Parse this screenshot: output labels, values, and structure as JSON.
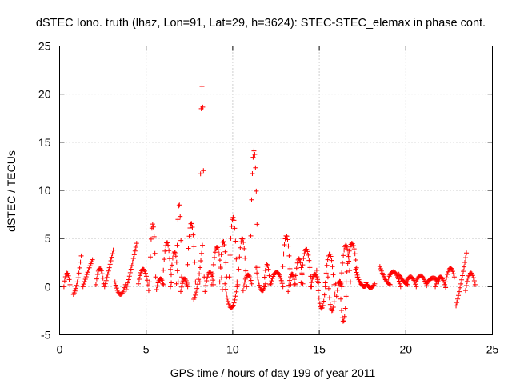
{
  "chart_data": {
    "type": "scatter",
    "title": "dSTEC Iono. truth (lhaz, Lon=91, Lat=29, h=3624): STEC-STEC_elemax in phase cont.",
    "xlabel": "GPS time / hours of day 199 of year 2011",
    "ylabel": "dSTEC  / TECUs",
    "xlim": [
      0,
      25
    ],
    "ylim": [
      -5,
      25
    ],
    "xticks": [
      0,
      5,
      10,
      15,
      20,
      25
    ],
    "yticks": [
      -5,
      0,
      5,
      10,
      15,
      20,
      25
    ],
    "grid": true,
    "marker": "plus",
    "color": "#ff0000",
    "arcs": [
      {
        "x0": 0.25,
        "x1": 0.6,
        "y0": 0.0,
        "yp": 1.4,
        "y1": 0.2
      },
      {
        "x0": 0.8,
        "x1": 1.25,
        "y0": -0.8,
        "yp": 0.5,
        "y1": 3.2
      },
      {
        "x0": 1.35,
        "x1": 1.9,
        "y0": 0.0,
        "yp": 1.5,
        "y1": 2.8
      },
      {
        "x0": 2.1,
        "x1": 2.55,
        "y0": 0.2,
        "yp": 1.9,
        "y1": 0.3
      },
      {
        "x0": 2.6,
        "x1": 3.1,
        "y0": 0.0,
        "yp": 1.8,
        "y1": 3.8
      },
      {
        "x0": 3.2,
        "x1": 3.8,
        "y0": 0.5,
        "yp": -0.8,
        "y1": 0.2
      },
      {
        "x0": 3.85,
        "x1": 4.45,
        "y0": -0.3,
        "yp": 2.0,
        "y1": 4.5
      },
      {
        "x0": 4.55,
        "x1": 5.15,
        "y0": 0.3,
        "yp": 1.8,
        "y1": -0.4
      },
      {
        "x0": 5.2,
        "x1": 5.55,
        "y0": 0.5,
        "yp": 6.5,
        "y1": 1.0
      },
      {
        "x0": 5.6,
        "x1": 6.0,
        "y0": -0.3,
        "yp": 0.8,
        "y1": 0.2
      },
      {
        "x0": 5.95,
        "x1": 6.45,
        "y0": 0.3,
        "yp": 4.6,
        "y1": 0.4
      },
      {
        "x0": 6.4,
        "x1": 6.85,
        "y0": 0.0,
        "yp": 3.6,
        "y1": 0.5
      },
      {
        "x0": 6.75,
        "x1": 7.05,
        "y0": 0.3,
        "yp": 8.6,
        "y1": 1.0
      },
      {
        "x0": 7.0,
        "x1": 7.4,
        "y0": -0.5,
        "yp": 0.8,
        "y1": 0.0
      },
      {
        "x0": 7.35,
        "x1": 7.85,
        "y0": 0.2,
        "yp": 6.6,
        "y1": 0.5
      },
      {
        "x0": 7.75,
        "x1": 8.25,
        "y0": -1.3,
        "yp": 0.5,
        "y1": 4.3
      },
      {
        "x0": 8.1,
        "x1": 8.35,
        "y0": 0.5,
        "yp": 20.8,
        "y1": 1.0
      },
      {
        "x0": 8.4,
        "x1": 8.9,
        "y0": -0.5,
        "yp": 1.5,
        "y1": 0.2
      },
      {
        "x0": 8.8,
        "x1": 9.4,
        "y0": 0.2,
        "yp": 4.1,
        "y1": -0.3
      },
      {
        "x0": 9.25,
        "x1": 9.65,
        "y0": 0.5,
        "yp": 4.7,
        "y1": 1.0
      },
      {
        "x0": 9.55,
        "x1": 10.25,
        "y0": 0.3,
        "yp": -2.2,
        "y1": 0.0
      },
      {
        "x0": 9.8,
        "x1": 10.25,
        "y0": 1.0,
        "yp": 7.2,
        "y1": 0.5
      },
      {
        "x0": 10.3,
        "x1": 10.8,
        "y0": 0.2,
        "yp": 5.0,
        "y1": 0.0
      },
      {
        "x0": 10.6,
        "x1": 11.1,
        "y0": -0.4,
        "yp": 1.2,
        "y1": 0.3
      },
      {
        "x0": 11.0,
        "x1": 11.45,
        "y0": 0.5,
        "yp": 14.1,
        "y1": 2.0
      },
      {
        "x0": 11.35,
        "x1": 11.9,
        "y0": 2.0,
        "yp": -0.3,
        "y1": 0.3
      },
      {
        "x0": 11.8,
        "x1": 12.15,
        "y0": 0.0,
        "yp": 2.3,
        "y1": 0.2
      },
      {
        "x0": 12.2,
        "x1": 12.9,
        "y0": 0.3,
        "yp": 1.5,
        "y1": 0.0
      },
      {
        "x0": 12.85,
        "x1": 13.35,
        "y0": 0.5,
        "yp": 5.3,
        "y1": 0.2
      },
      {
        "x0": 13.2,
        "x1": 13.6,
        "y0": -0.5,
        "yp": 1.3,
        "y1": 0.3
      },
      {
        "x0": 13.6,
        "x1": 14.05,
        "y0": 0.2,
        "yp": 2.9,
        "y1": 0.3
      },
      {
        "x0": 13.95,
        "x1": 14.55,
        "y0": 0.4,
        "yp": 3.9,
        "y1": 0.0
      },
      {
        "x0": 14.5,
        "x1": 14.95,
        "y0": 0.0,
        "yp": 1.3,
        "y1": 0.4
      },
      {
        "x0": 14.85,
        "x1": 15.35,
        "y0": 1.7,
        "yp": -2.2,
        "y1": 0.0
      },
      {
        "x0": 15.35,
        "x1": 15.85,
        "y0": 0.4,
        "yp": 3.4,
        "y1": 0.2
      },
      {
        "x0": 15.5,
        "x1": 15.95,
        "y0": 1.0,
        "yp": -2.5,
        "y1": 0.3
      },
      {
        "x0": 16.0,
        "x1": 16.3,
        "y0": -1.0,
        "yp": 0.5,
        "y1": 0.0
      },
      {
        "x0": 16.2,
        "x1": 16.55,
        "y0": 0.3,
        "yp": -3.6,
        "y1": -1.0
      },
      {
        "x0": 16.25,
        "x1": 16.8,
        "y0": 0.2,
        "yp": 4.3,
        "y1": 0.5
      },
      {
        "x0": 16.55,
        "x1": 17.2,
        "y0": 0.5,
        "yp": 4.5,
        "y1": 1.0
      },
      {
        "x0": 17.1,
        "x1": 17.7,
        "y0": 1.8,
        "yp": 0.3,
        "y1": 0.1
      },
      {
        "x0": 17.7,
        "x1": 18.2,
        "y0": 0.4,
        "yp": -0.1,
        "y1": 0.3
      },
      {
        "x0": 18.5,
        "x1": 19.1,
        "y0": 2.1,
        "yp": 0.8,
        "y1": 0.2
      },
      {
        "x0": 19.0,
        "x1": 19.7,
        "y0": 0.9,
        "yp": 1.5,
        "y1": 0.0
      },
      {
        "x0": 19.6,
        "x1": 20.1,
        "y0": 1.3,
        "yp": 0.6,
        "y1": 0.2
      },
      {
        "x0": 20.0,
        "x1": 20.6,
        "y0": 0.4,
        "yp": 1.0,
        "y1": 0.0
      },
      {
        "x0": 20.6,
        "x1": 21.2,
        "y0": 0.6,
        "yp": 1.1,
        "y1": 0.1
      },
      {
        "x0": 21.2,
        "x1": 21.9,
        "y0": 0.3,
        "yp": 0.9,
        "y1": 0.5
      },
      {
        "x0": 21.7,
        "x1": 22.3,
        "y0": 0.0,
        "yp": 1.0,
        "y1": -0.1
      },
      {
        "x0": 22.3,
        "x1": 22.8,
        "y0": 0.5,
        "yp": 1.9,
        "y1": 1.0
      },
      {
        "x0": 22.9,
        "x1": 23.5,
        "y0": -2.0,
        "yp": 0.5,
        "y1": 3.5
      },
      {
        "x0": 23.45,
        "x1": 24.0,
        "y0": -0.4,
        "yp": 1.4,
        "y1": 0.2
      }
    ]
  }
}
